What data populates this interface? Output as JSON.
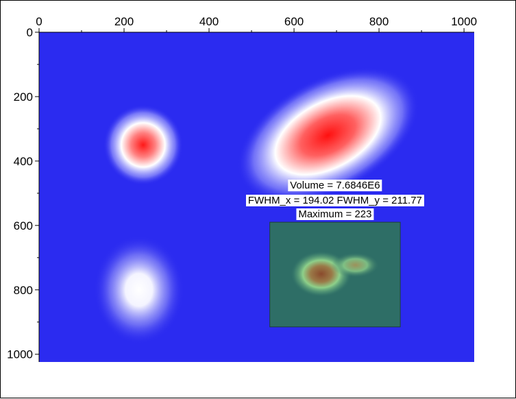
{
  "chart_data": {
    "type": "heatmap",
    "title": "",
    "xlabel": "",
    "ylabel": "",
    "xlim": [
      0,
      1024
    ],
    "ylim": [
      0,
      1024
    ],
    "x_axis_position": "top",
    "y_axis_inverted": true,
    "grid": false,
    "x_ticks": [
      0,
      200,
      400,
      600,
      800,
      1000
    ],
    "y_ticks": [
      0,
      200,
      400,
      600,
      800,
      1000
    ],
    "colormap": {
      "low": "#2b2bf0",
      "mid": "#ffffff",
      "high": "#ff1414"
    },
    "blobs": [
      {
        "cx": 245,
        "cy": 350,
        "sx": 75,
        "sy": 100,
        "peak": "red"
      },
      {
        "cx": 680,
        "cy": 320,
        "sx": 185,
        "sy": 140,
        "peak": "red"
      },
      {
        "cx": 235,
        "cy": 800,
        "sx": 85,
        "sy": 135,
        "peak": "white"
      }
    ],
    "roi": {
      "x": [
        543,
        850
      ],
      "y": [
        590,
        915
      ],
      "fill": "#2e6e66",
      "inner_blob": {
        "cx": 680,
        "cy": 740,
        "sx": 160,
        "sy": 130
      }
    },
    "annotations": {
      "volume": "Volume = 7.6846E6",
      "fwhm": "FWHM_x = 194.02 FWHM_y = 211.77",
      "maximum": "Maximum = 223"
    }
  }
}
